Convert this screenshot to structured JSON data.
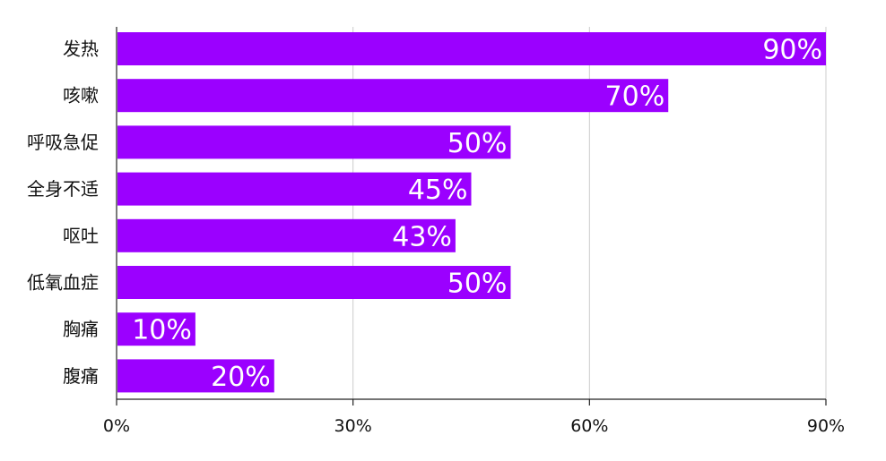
{
  "chart_data": {
    "type": "bar",
    "orientation": "horizontal",
    "categories": [
      "发热",
      "咳嗽",
      "呼吸急促",
      "全身不适",
      "呕吐",
      "低氧血症",
      "胸痛",
      "腹痛"
    ],
    "values": [
      90,
      70,
      50,
      45,
      43,
      50,
      10,
      20
    ],
    "value_labels": [
      "90%",
      "70%",
      "50%",
      "45%",
      "43%",
      "50%",
      "10%",
      "20%"
    ],
    "xlim": [
      0,
      90
    ],
    "xticks": [
      0,
      30,
      60,
      90
    ],
    "xtick_labels": [
      "0%",
      "30%",
      "60%",
      "90%"
    ],
    "grid": true,
    "legend": "none",
    "bar_color": "#9B00FF",
    "label_color": "#ffffff",
    "axis_color": "#222222",
    "grid_color": "#cccccc"
  }
}
